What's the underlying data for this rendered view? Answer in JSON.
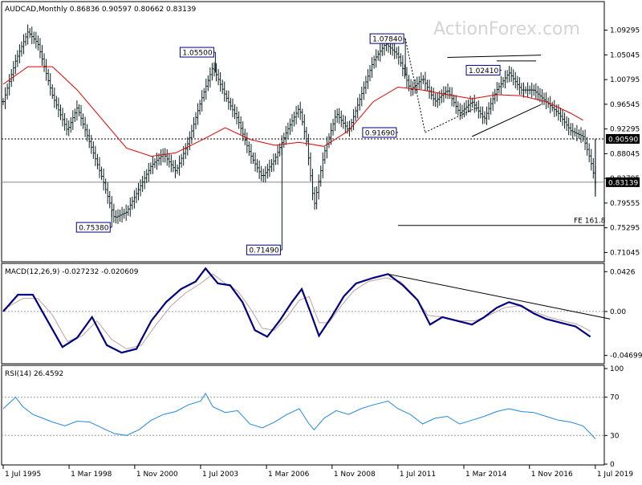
{
  "chart_data": {
    "type": "line",
    "watermark": "ActionForex.com",
    "colors": {
      "bars": "#0a1f1f",
      "ma": "#e00000",
      "macd": "#000080",
      "signal": "#c0a0a0",
      "rsi": "#2288dd",
      "label_bg": "#ffffff",
      "label_border": "#000080",
      "label_text": "#000080"
    },
    "price": {
      "header": "AUDCAD,Monthly  0.86836 0.90597 0.80662 0.83139",
      "ylim": [
        0.7,
        1.12
      ],
      "yticks": [
        "1.09295",
        "1.05045",
        "1.00795",
        "0.96545",
        "0.92295",
        "0.88045",
        "0.83795",
        "0.79555",
        "0.75295",
        "0.71045"
      ],
      "current_price": "0.83139",
      "level_price": "0.90590",
      "fe_label": "FE 161.8",
      "fe_value": 0.757,
      "annotations": [
        {
          "text": "1.05500",
          "t": 8.6,
          "v": 1.055
        },
        {
          "text": "1.07840",
          "t": 16.3,
          "v": 1.0784
        },
        {
          "text": "0.91690",
          "t": 16.0,
          "v": 0.9169
        },
        {
          "text": "1.02410",
          "t": 20.2,
          "v": 1.0241
        },
        {
          "text": "0.75380",
          "t": 4.4,
          "v": 0.7538
        },
        {
          "text": "0.71490",
          "t": 11.3,
          "v": 0.7149
        }
      ],
      "close_path": [
        [
          0.0,
          0.97
        ],
        [
          0.5,
          1.04
        ],
        [
          1.0,
          1.09
        ],
        [
          1.4,
          1.07
        ],
        [
          2.0,
          0.98
        ],
        [
          2.6,
          0.92
        ],
        [
          3.0,
          0.96
        ],
        [
          3.5,
          0.9
        ],
        [
          4.0,
          0.84
        ],
        [
          4.5,
          0.77
        ],
        [
          5.0,
          0.78
        ],
        [
          5.5,
          0.82
        ],
        [
          6.0,
          0.86
        ],
        [
          6.5,
          0.88
        ],
        [
          7.0,
          0.85
        ],
        [
          7.5,
          0.9
        ],
        [
          8.0,
          0.97
        ],
        [
          8.5,
          1.03
        ],
        [
          9.0,
          0.98
        ],
        [
          9.5,
          0.94
        ],
        [
          10.0,
          0.88
        ],
        [
          10.5,
          0.84
        ],
        [
          11.0,
          0.87
        ],
        [
          11.5,
          0.92
        ],
        [
          12.0,
          0.96
        ],
        [
          12.3,
          0.9
        ],
        [
          12.6,
          0.79
        ],
        [
          13.0,
          0.88
        ],
        [
          13.5,
          0.95
        ],
        [
          14.0,
          0.92
        ],
        [
          14.5,
          0.98
        ],
        [
          15.0,
          1.04
        ],
        [
          15.5,
          1.07
        ],
        [
          16.0,
          1.05
        ],
        [
          16.5,
          0.99
        ],
        [
          17.0,
          1.01
        ],
        [
          17.5,
          0.97
        ],
        [
          18.0,
          0.99
        ],
        [
          18.5,
          0.95
        ],
        [
          19.0,
          0.97
        ],
        [
          19.5,
          0.94
        ],
        [
          20.0,
          0.99
        ],
        [
          20.5,
          1.02
        ],
        [
          21.0,
          0.99
        ],
        [
          21.5,
          0.99
        ],
        [
          22.0,
          0.97
        ],
        [
          22.5,
          0.95
        ],
        [
          23.0,
          0.92
        ],
        [
          23.5,
          0.91
        ],
        [
          23.8,
          0.87
        ],
        [
          24.0,
          0.831
        ]
      ],
      "ma_path": [
        [
          0.0,
          1.0
        ],
        [
          1.0,
          1.03
        ],
        [
          2.0,
          1.03
        ],
        [
          3.0,
          0.99
        ],
        [
          4.0,
          0.94
        ],
        [
          5.0,
          0.89
        ],
        [
          6.0,
          0.876
        ],
        [
          7.0,
          0.882
        ],
        [
          8.0,
          0.903
        ],
        [
          9.0,
          0.925
        ],
        [
          10.0,
          0.905
        ],
        [
          11.0,
          0.895
        ],
        [
          12.0,
          0.9
        ],
        [
          13.0,
          0.893
        ],
        [
          14.0,
          0.92
        ],
        [
          15.0,
          0.97
        ],
        [
          16.0,
          0.995
        ],
        [
          17.0,
          0.99
        ],
        [
          18.0,
          0.982
        ],
        [
          19.0,
          0.975
        ],
        [
          20.0,
          0.982
        ],
        [
          21.0,
          0.98
        ],
        [
          22.0,
          0.97
        ],
        [
          23.0,
          0.95
        ],
        [
          23.5,
          0.938
        ]
      ],
      "trendlines": [
        {
          "name": "triangle-upper",
          "points": [
            [
              18.0,
              1.046
            ],
            [
              21.8,
              1.05
            ]
          ]
        },
        {
          "name": "triangle-lower",
          "points": [
            [
              19.0,
              0.91
            ],
            [
              21.8,
              0.965
            ]
          ]
        },
        {
          "name": "triangle-bracket-upper",
          "points": [
            [
              20.0,
              1.04
            ],
            [
              21.6,
              1.04
            ]
          ]
        },
        {
          "name": "dotted-rise",
          "points": [
            [
              17.1,
              0.917
            ],
            [
              19.2,
              0.96
            ]
          ]
        },
        {
          "name": "dotted-fall",
          "points": [
            [
              16.3,
              1.0784
            ],
            [
              17.1,
              0.917
            ]
          ]
        }
      ]
    },
    "macd": {
      "header": "MACD(12,26,9) -0.027232 -0.020609",
      "ylim": [
        -0.055,
        0.048
      ],
      "yticks": [
        "0.0426",
        "0.00",
        "-0.046993"
      ],
      "macd_path": [
        [
          0.0,
          0.0
        ],
        [
          0.6,
          0.018
        ],
        [
          1.2,
          0.018
        ],
        [
          1.8,
          -0.01
        ],
        [
          2.4,
          -0.038
        ],
        [
          3.0,
          -0.028
        ],
        [
          3.6,
          -0.006
        ],
        [
          4.2,
          -0.036
        ],
        [
          4.8,
          -0.044
        ],
        [
          5.4,
          -0.04
        ],
        [
          6.0,
          -0.01
        ],
        [
          6.6,
          0.01
        ],
        [
          7.2,
          0.024
        ],
        [
          7.8,
          0.032
        ],
        [
          8.2,
          0.046
        ],
        [
          8.7,
          0.03
        ],
        [
          9.2,
          0.028
        ],
        [
          9.7,
          0.01
        ],
        [
          10.2,
          -0.02
        ],
        [
          10.7,
          -0.027
        ],
        [
          11.2,
          -0.01
        ],
        [
          11.7,
          0.01
        ],
        [
          12.1,
          0.024
        ],
        [
          12.5,
          -0.004
        ],
        [
          12.8,
          -0.026
        ],
        [
          13.3,
          -0.006
        ],
        [
          13.8,
          0.016
        ],
        [
          14.3,
          0.03
        ],
        [
          15.0,
          0.036
        ],
        [
          15.6,
          0.04
        ],
        [
          16.2,
          0.028
        ],
        [
          16.8,
          0.012
        ],
        [
          17.3,
          -0.014
        ],
        [
          17.8,
          -0.006
        ],
        [
          18.4,
          -0.01
        ],
        [
          19.0,
          -0.014
        ],
        [
          19.5,
          -0.006
        ],
        [
          20.0,
          0.004
        ],
        [
          20.5,
          0.01
        ],
        [
          21.0,
          0.006
        ],
        [
          21.5,
          -0.002
        ],
        [
          22.0,
          -0.008
        ],
        [
          22.6,
          -0.012
        ],
        [
          23.2,
          -0.016
        ],
        [
          23.8,
          -0.027
        ]
      ],
      "signal_path": [
        [
          0.0,
          0.002
        ],
        [
          0.8,
          0.014
        ],
        [
          1.4,
          0.014
        ],
        [
          2.0,
          -0.004
        ],
        [
          2.6,
          -0.032
        ],
        [
          3.2,
          -0.026
        ],
        [
          3.8,
          -0.01
        ],
        [
          4.4,
          -0.03
        ],
        [
          5.0,
          -0.04
        ],
        [
          5.6,
          -0.036
        ],
        [
          6.2,
          -0.014
        ],
        [
          6.8,
          0.006
        ],
        [
          7.4,
          0.02
        ],
        [
          8.0,
          0.03
        ],
        [
          8.5,
          0.04
        ],
        [
          9.0,
          0.03
        ],
        [
          9.5,
          0.022
        ],
        [
          10.0,
          0.004
        ],
        [
          10.5,
          -0.018
        ],
        [
          11.0,
          -0.02
        ],
        [
          11.5,
          -0.006
        ],
        [
          12.0,
          0.012
        ],
        [
          12.4,
          0.016
        ],
        [
          12.8,
          -0.012
        ],
        [
          13.2,
          -0.012
        ],
        [
          13.7,
          0.006
        ],
        [
          14.2,
          0.022
        ],
        [
          14.8,
          0.032
        ],
        [
          15.5,
          0.036
        ],
        [
          16.1,
          0.032
        ],
        [
          16.7,
          0.016
        ],
        [
          17.2,
          -0.004
        ],
        [
          17.8,
          -0.006
        ],
        [
          18.5,
          -0.01
        ],
        [
          19.1,
          -0.01
        ],
        [
          19.7,
          -0.004
        ],
        [
          20.3,
          0.004
        ],
        [
          20.9,
          0.006
        ],
        [
          21.5,
          0.0
        ],
        [
          22.1,
          -0.006
        ],
        [
          22.7,
          -0.01
        ],
        [
          23.3,
          -0.014
        ],
        [
          23.8,
          -0.021
        ]
      ],
      "trendline": [
        [
          15.6,
          0.04
        ],
        [
          24.6,
          -0.008
        ]
      ]
    },
    "rsi": {
      "header": "RSI(14) 26.4592",
      "ylim": [
        0,
        100
      ],
      "yticks": [
        "100",
        "70",
        "30",
        "0"
      ],
      "path": [
        [
          0.0,
          58
        ],
        [
          0.5,
          70
        ],
        [
          0.8,
          60
        ],
        [
          1.2,
          52
        ],
        [
          1.6,
          48
        ],
        [
          2.0,
          44
        ],
        [
          2.5,
          40
        ],
        [
          3.0,
          45
        ],
        [
          3.5,
          44
        ],
        [
          4.0,
          38
        ],
        [
          4.5,
          32
        ],
        [
          5.0,
          30
        ],
        [
          5.5,
          36
        ],
        [
          6.0,
          46
        ],
        [
          6.5,
          52
        ],
        [
          7.0,
          55
        ],
        [
          7.5,
          62
        ],
        [
          8.0,
          66
        ],
        [
          8.2,
          74
        ],
        [
          8.5,
          60
        ],
        [
          9.0,
          54
        ],
        [
          9.5,
          56
        ],
        [
          10.0,
          42
        ],
        [
          10.5,
          38
        ],
        [
          11.0,
          44
        ],
        [
          11.5,
          52
        ],
        [
          12.0,
          58
        ],
        [
          12.4,
          42
        ],
        [
          12.6,
          36
        ],
        [
          13.0,
          48
        ],
        [
          13.5,
          56
        ],
        [
          14.0,
          52
        ],
        [
          14.5,
          58
        ],
        [
          15.0,
          62
        ],
        [
          15.6,
          66
        ],
        [
          16.0,
          58
        ],
        [
          16.5,
          52
        ],
        [
          17.0,
          42
        ],
        [
          17.5,
          48
        ],
        [
          18.0,
          50
        ],
        [
          18.5,
          42
        ],
        [
          19.0,
          46
        ],
        [
          19.5,
          50
        ],
        [
          20.0,
          55
        ],
        [
          20.5,
          58
        ],
        [
          21.0,
          55
        ],
        [
          21.5,
          54
        ],
        [
          22.0,
          50
        ],
        [
          22.5,
          46
        ],
        [
          23.0,
          44
        ],
        [
          23.5,
          40
        ],
        [
          23.8,
          32
        ],
        [
          24.0,
          26.5
        ]
      ]
    },
    "x_axis": {
      "labels": [
        "1 Jul 1995",
        "1 Mar 1998",
        "1 Nov 2000",
        "1 Jul 2003",
        "1 Mar 2006",
        "1 Nov 2008",
        "1 Jul 2011",
        "1 Mar 2014",
        "1 Nov 2016",
        "1 Jul 2019"
      ],
      "positions": [
        0,
        2.67,
        5.33,
        8.0,
        10.67,
        13.33,
        16.0,
        18.67,
        21.33,
        24.0
      ]
    }
  }
}
